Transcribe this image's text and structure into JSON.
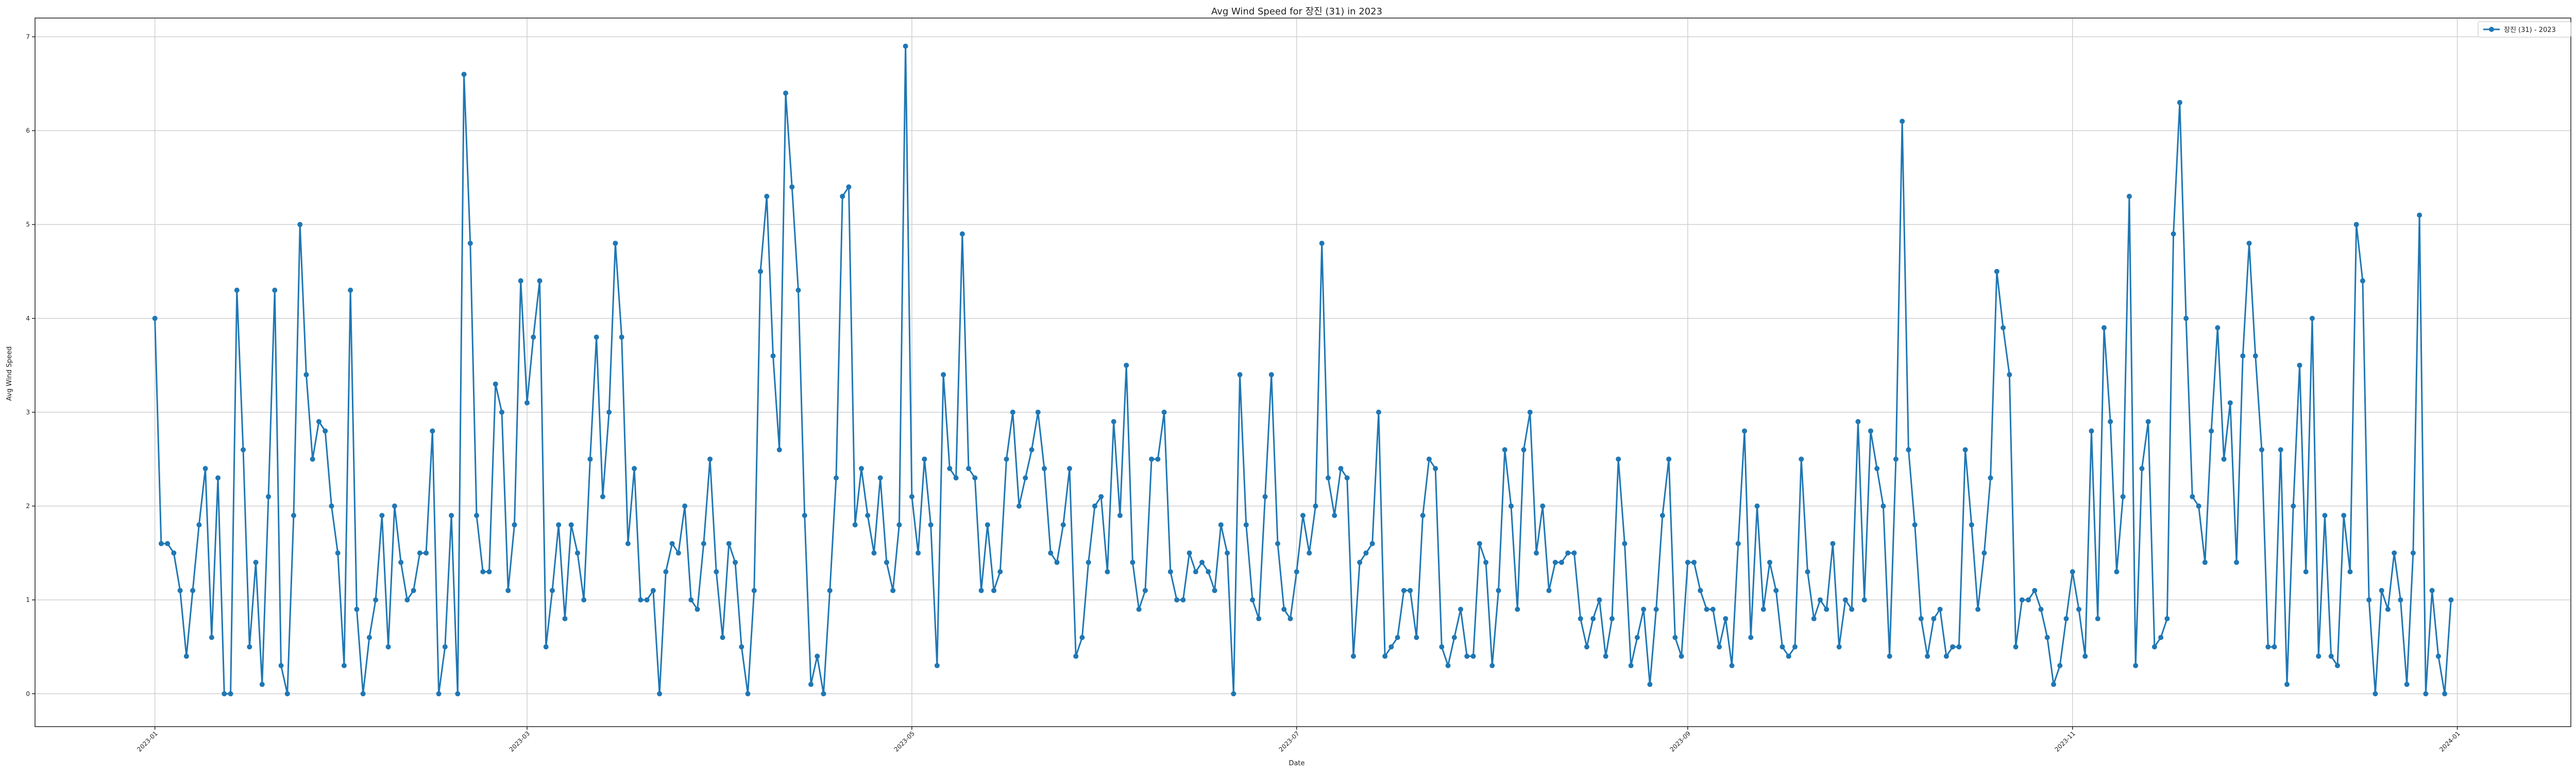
{
  "chart_data": {
    "type": "line",
    "title": "Avg Wind Speed for 장진 (31) in 2023",
    "xlabel": "Date",
    "ylabel": "Avg Wind Speed",
    "grid": true,
    "legend_placement": "top-right",
    "colors": {
      "series": "#1f77b4",
      "grid": "#d0d0d0",
      "axis": "#222222"
    },
    "xlim": [
      "2022-12-13",
      "2024-01-19"
    ],
    "ylim": [
      -0.35,
      7.2
    ],
    "y_ticks": [
      {
        "value": 0,
        "label": "0"
      },
      {
        "value": 1,
        "label": "1"
      },
      {
        "value": 2,
        "label": "2"
      },
      {
        "value": 3,
        "label": "3"
      },
      {
        "value": 4,
        "label": "4"
      },
      {
        "value": 5,
        "label": "5"
      },
      {
        "value": 6,
        "label": "6"
      },
      {
        "value": 7,
        "label": "7"
      }
    ],
    "x_ticks": [
      {
        "value": "2023-01-01",
        "label": "2023-01"
      },
      {
        "value": "2023-03-01",
        "label": "2023-03"
      },
      {
        "value": "2023-05-01",
        "label": "2023-05"
      },
      {
        "value": "2023-07-01",
        "label": "2023-07"
      },
      {
        "value": "2023-09-01",
        "label": "2023-09"
      },
      {
        "value": "2023-11-01",
        "label": "2023-11"
      },
      {
        "value": "2024-01-01",
        "label": "2024-01"
      }
    ],
    "series": [
      {
        "name": "장진 (31) - 2023",
        "start_date": "2023-01-01",
        "values": [
          4.0,
          1.6,
          1.6,
          1.5,
          1.1,
          0.4,
          1.1,
          1.8,
          2.4,
          0.6,
          2.3,
          0.0,
          0.0,
          4.3,
          2.6,
          0.5,
          1.4,
          0.1,
          2.1,
          4.3,
          0.3,
          0.0,
          1.9,
          5.0,
          3.4,
          2.5,
          2.9,
          2.8,
          2.0,
          1.5,
          0.3,
          4.3,
          0.9,
          0.0,
          0.6,
          1.0,
          1.9,
          0.5,
          2.0,
          1.4,
          1.0,
          1.1,
          1.5,
          1.5,
          2.8,
          0.0,
          0.5,
          1.9,
          0.0,
          6.6,
          4.8,
          1.9,
          1.3,
          1.3,
          3.3,
          3.0,
          1.1,
          1.8,
          4.4,
          3.1,
          3.8,
          4.4,
          0.5,
          1.1,
          1.8,
          0.8,
          1.8,
          1.5,
          1.0,
          2.5,
          3.8,
          2.1,
          3.0,
          4.8,
          3.8,
          1.6,
          2.4,
          1.0,
          1.0,
          1.1,
          0.0,
          1.3,
          1.6,
          1.5,
          2.0,
          1.0,
          0.9,
          1.6,
          2.5,
          1.3,
          0.6,
          1.6,
          1.4,
          0.5,
          0.0,
          1.1,
          4.5,
          5.3,
          3.6,
          2.6,
          6.4,
          5.4,
          4.3,
          1.9,
          0.1,
          0.4,
          0.0,
          1.1,
          2.3,
          5.3,
          5.4,
          1.8,
          2.4,
          1.9,
          1.5,
          2.3,
          1.4,
          1.1,
          1.8,
          6.9,
          2.1,
          1.5,
          2.5,
          1.8,
          0.3,
          3.4,
          2.4,
          2.3,
          4.9,
          2.4,
          2.3,
          1.1,
          1.8,
          1.1,
          1.3,
          2.5,
          3.0,
          2.0,
          2.3,
          2.6,
          3.0,
          2.4,
          1.5,
          1.4,
          1.8,
          2.4,
          0.4,
          0.6,
          1.4,
          2.0,
          2.1,
          1.3,
          2.9,
          1.9,
          3.5,
          1.4,
          0.9,
          1.1,
          2.5,
          2.5,
          3.0,
          1.3,
          1.0,
          1.0,
          1.5,
          1.3,
          1.4,
          1.3,
          1.1,
          1.8,
          1.5,
          0.0,
          3.4,
          1.8,
          1.0,
          0.8,
          2.1,
          3.4,
          1.6,
          0.9,
          0.8,
          1.3,
          1.9,
          1.5,
          2.0,
          4.8,
          2.3,
          1.9,
          2.4,
          2.3,
          0.4,
          1.4,
          1.5,
          1.6,
          3.0,
          0.4,
          0.5,
          0.6,
          1.1,
          1.1,
          0.6,
          1.9,
          2.5,
          2.4,
          0.5,
          0.3,
          0.6,
          0.9,
          0.4,
          0.4,
          1.6,
          1.4,
          0.3,
          1.1,
          2.6,
          2.0,
          0.9,
          2.6,
          3.0,
          1.5,
          2.0,
          1.1,
          1.4,
          1.4,
          1.5,
          1.5,
          0.8,
          0.5,
          0.8,
          1.0,
          0.4,
          0.8,
          2.5,
          1.6,
          0.3,
          0.6,
          0.9,
          0.1,
          0.9,
          1.9,
          2.5,
          0.6,
          0.4,
          1.4,
          1.4,
          1.1,
          0.9,
          0.9,
          0.5,
          0.8,
          0.3,
          1.6,
          2.8,
          0.6,
          2.0,
          0.9,
          1.4,
          1.1,
          0.5,
          0.4,
          0.5,
          2.5,
          1.3,
          0.8,
          1.0,
          0.9,
          1.6,
          0.5,
          1.0,
          0.9,
          2.9,
          1.0,
          2.8,
          2.4,
          2.0,
          0.4,
          2.5,
          6.1,
          2.6,
          1.8,
          0.8,
          0.4,
          0.8,
          0.9,
          0.4,
          0.5,
          0.5,
          2.6,
          1.8,
          0.9,
          1.5,
          2.3,
          4.5,
          3.9,
          3.4,
          0.5,
          1.0,
          1.0,
          1.1,
          0.9,
          0.6,
          0.1,
          0.3,
          0.8,
          1.3,
          0.9,
          0.4,
          2.8,
          0.8,
          3.9,
          2.9,
          1.3,
          2.1,
          5.3,
          0.3,
          2.4,
          2.9,
          0.5,
          0.6,
          0.8,
          4.9,
          6.3,
          4.0,
          2.1,
          2.0,
          1.4,
          2.8,
          3.9,
          2.5,
          3.1,
          1.4,
          3.6,
          4.8,
          3.6,
          2.6,
          0.5,
          0.5,
          2.6,
          0.1,
          2.0,
          3.5,
          1.3,
          4.0,
          0.4,
          1.9,
          0.4,
          0.3,
          1.9,
          1.3,
          5.0,
          4.4,
          1.0,
          0.0,
          1.1,
          0.9,
          1.5,
          1.0,
          0.1,
          1.5,
          5.1,
          0.0,
          1.1,
          0.4,
          0.0,
          1.0
        ]
      }
    ]
  }
}
